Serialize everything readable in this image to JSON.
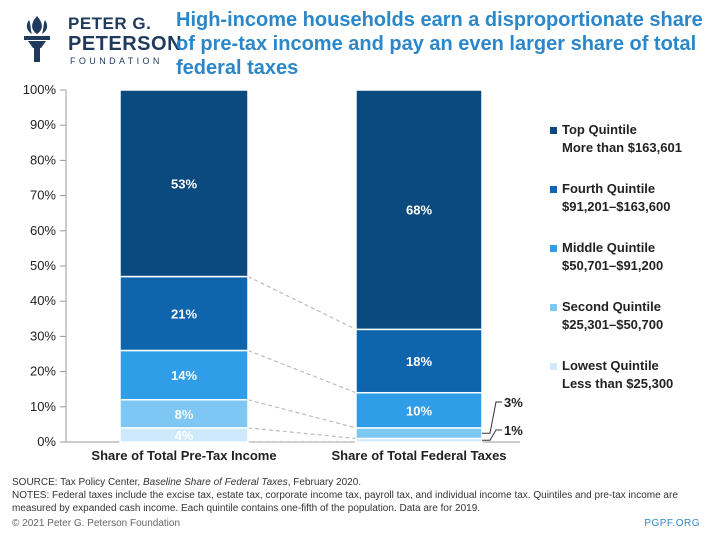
{
  "logo": {
    "line1": "PETER G.",
    "line2": "PETERSON",
    "line3": "FOUNDATION"
  },
  "title": "High-income households earn a disproportionate share of pre-tax income and pay an even larger share of total federal taxes",
  "colors": {
    "top": "#0b4a7e",
    "fourth": "#0e64ad",
    "middle": "#2f9de8",
    "second": "#7ec6f3",
    "lowest": "#cde9fb",
    "title": "#2b87c9",
    "axis_text": "#222222",
    "connector": "#bbbbbb"
  },
  "chart_data": {
    "type": "bar",
    "stacked": true,
    "categories": [
      "Share of Total Pre-Tax Income",
      "Share of Total Federal Taxes"
    ],
    "ylim": [
      0,
      100
    ],
    "yticks": [
      "0%",
      "10%",
      "20%",
      "30%",
      "40%",
      "50%",
      "60%",
      "70%",
      "80%",
      "90%",
      "100%"
    ],
    "series": [
      {
        "name": "Lowest Quintile",
        "legend_sub": "Less than $25,300",
        "values": [
          4,
          1
        ],
        "labels": [
          "4%",
          "1%"
        ],
        "color_key": "lowest"
      },
      {
        "name": "Second Quintile",
        "legend_sub": "$25,301–$50,700",
        "values": [
          8,
          3
        ],
        "labels": [
          "8%",
          "3%"
        ],
        "color_key": "second"
      },
      {
        "name": "Middle Quintile",
        "legend_sub": "$50,701–$91,200",
        "values": [
          14,
          10
        ],
        "labels": [
          "14%",
          "10%"
        ],
        "color_key": "middle"
      },
      {
        "name": "Fourth Quintile",
        "legend_sub": "$91,201–$163,600",
        "values": [
          21,
          18
        ],
        "labels": [
          "21%",
          "18%"
        ],
        "color_key": "fourth"
      },
      {
        "name": "Top Quintile",
        "legend_sub": "More than $163,601",
        "values": [
          53,
          68
        ],
        "labels": [
          "53%",
          "68%"
        ],
        "color_key": "top"
      }
    ],
    "legend_position": "right",
    "grid": false
  },
  "footer": {
    "source": "SOURCE: Tax Policy Center, Baseline Share of Federal Taxes, February 2020.",
    "notes": "NOTES: Federal taxes include the excise tax, estate tax, corporate income tax, payroll tax, and individual income tax. Quintiles and pre-tax income are measured by expanded cash income. Each quintile contains one-fifth of the population. Data are for 2019.",
    "copyright": "© 2021 Peter G. Peterson Foundation",
    "site": "PGPF.ORG"
  }
}
